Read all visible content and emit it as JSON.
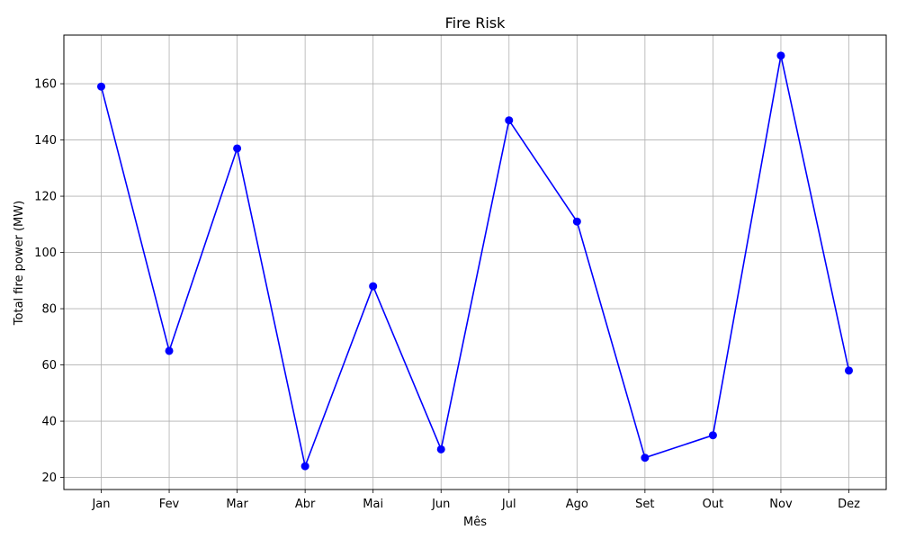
{
  "chart_data": {
    "type": "line",
    "title": "Fire Risk",
    "xlabel": "Mês",
    "ylabel": "Total fire power (MW)",
    "categories": [
      "Jan",
      "Fev",
      "Mar",
      "Abr",
      "Mai",
      "Jun",
      "Jul",
      "Ago",
      "Set",
      "Out",
      "Nov",
      "Dez"
    ],
    "series": [
      {
        "values": [
          159,
          65,
          137,
          24,
          88,
          30,
          147,
          111,
          27,
          35,
          170,
          58
        ],
        "color": "#0000ff",
        "marker": "circle"
      }
    ],
    "ylim": [
      15.7,
      177.3
    ],
    "yticks": [
      20,
      40,
      60,
      80,
      100,
      120,
      140,
      160
    ],
    "grid": true,
    "gridColor": "#b0b0b0"
  }
}
